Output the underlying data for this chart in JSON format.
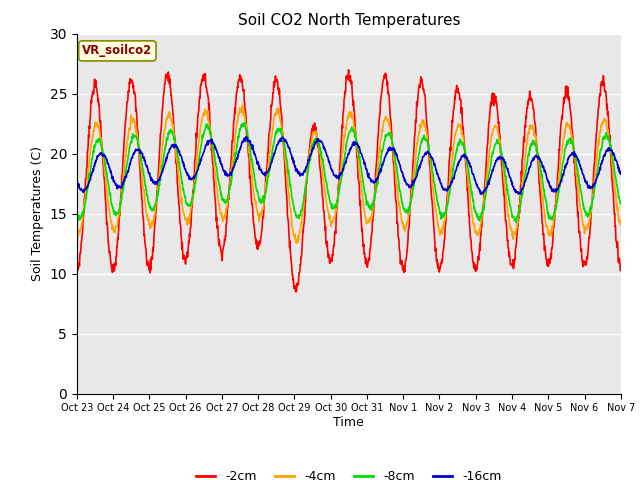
{
  "title": "Soil CO2 North Temperatures",
  "ylabel": "Soil Temperatures (C)",
  "xlabel": "Time",
  "annotation_text": "VR_soilco2",
  "ylim": [
    0,
    30
  ],
  "yticks": [
    0,
    5,
    10,
    15,
    20,
    25,
    30
  ],
  "xtick_labels": [
    "Oct 23",
    "Oct 24",
    "Oct 25",
    "Oct 26",
    "Oct 27",
    "Oct 28",
    "Oct 29",
    "Oct 30",
    "Oct 31",
    "Nov 1",
    "Nov 2",
    "Nov 3",
    "Nov 4",
    "Nov 5",
    "Nov 6",
    "Nov 7"
  ],
  "colors": {
    "-2cm": "#ff0000",
    "-4cm": "#ffa500",
    "-8cm": "#00dd00",
    "-16cm": "#0000cc"
  },
  "legend_labels": [
    "-2cm",
    "-4cm",
    "-8cm",
    "-16cm"
  ],
  "bg_color": "#e8e8e8",
  "title_fontsize": 11,
  "num_days": 15,
  "points_per_day": 96
}
